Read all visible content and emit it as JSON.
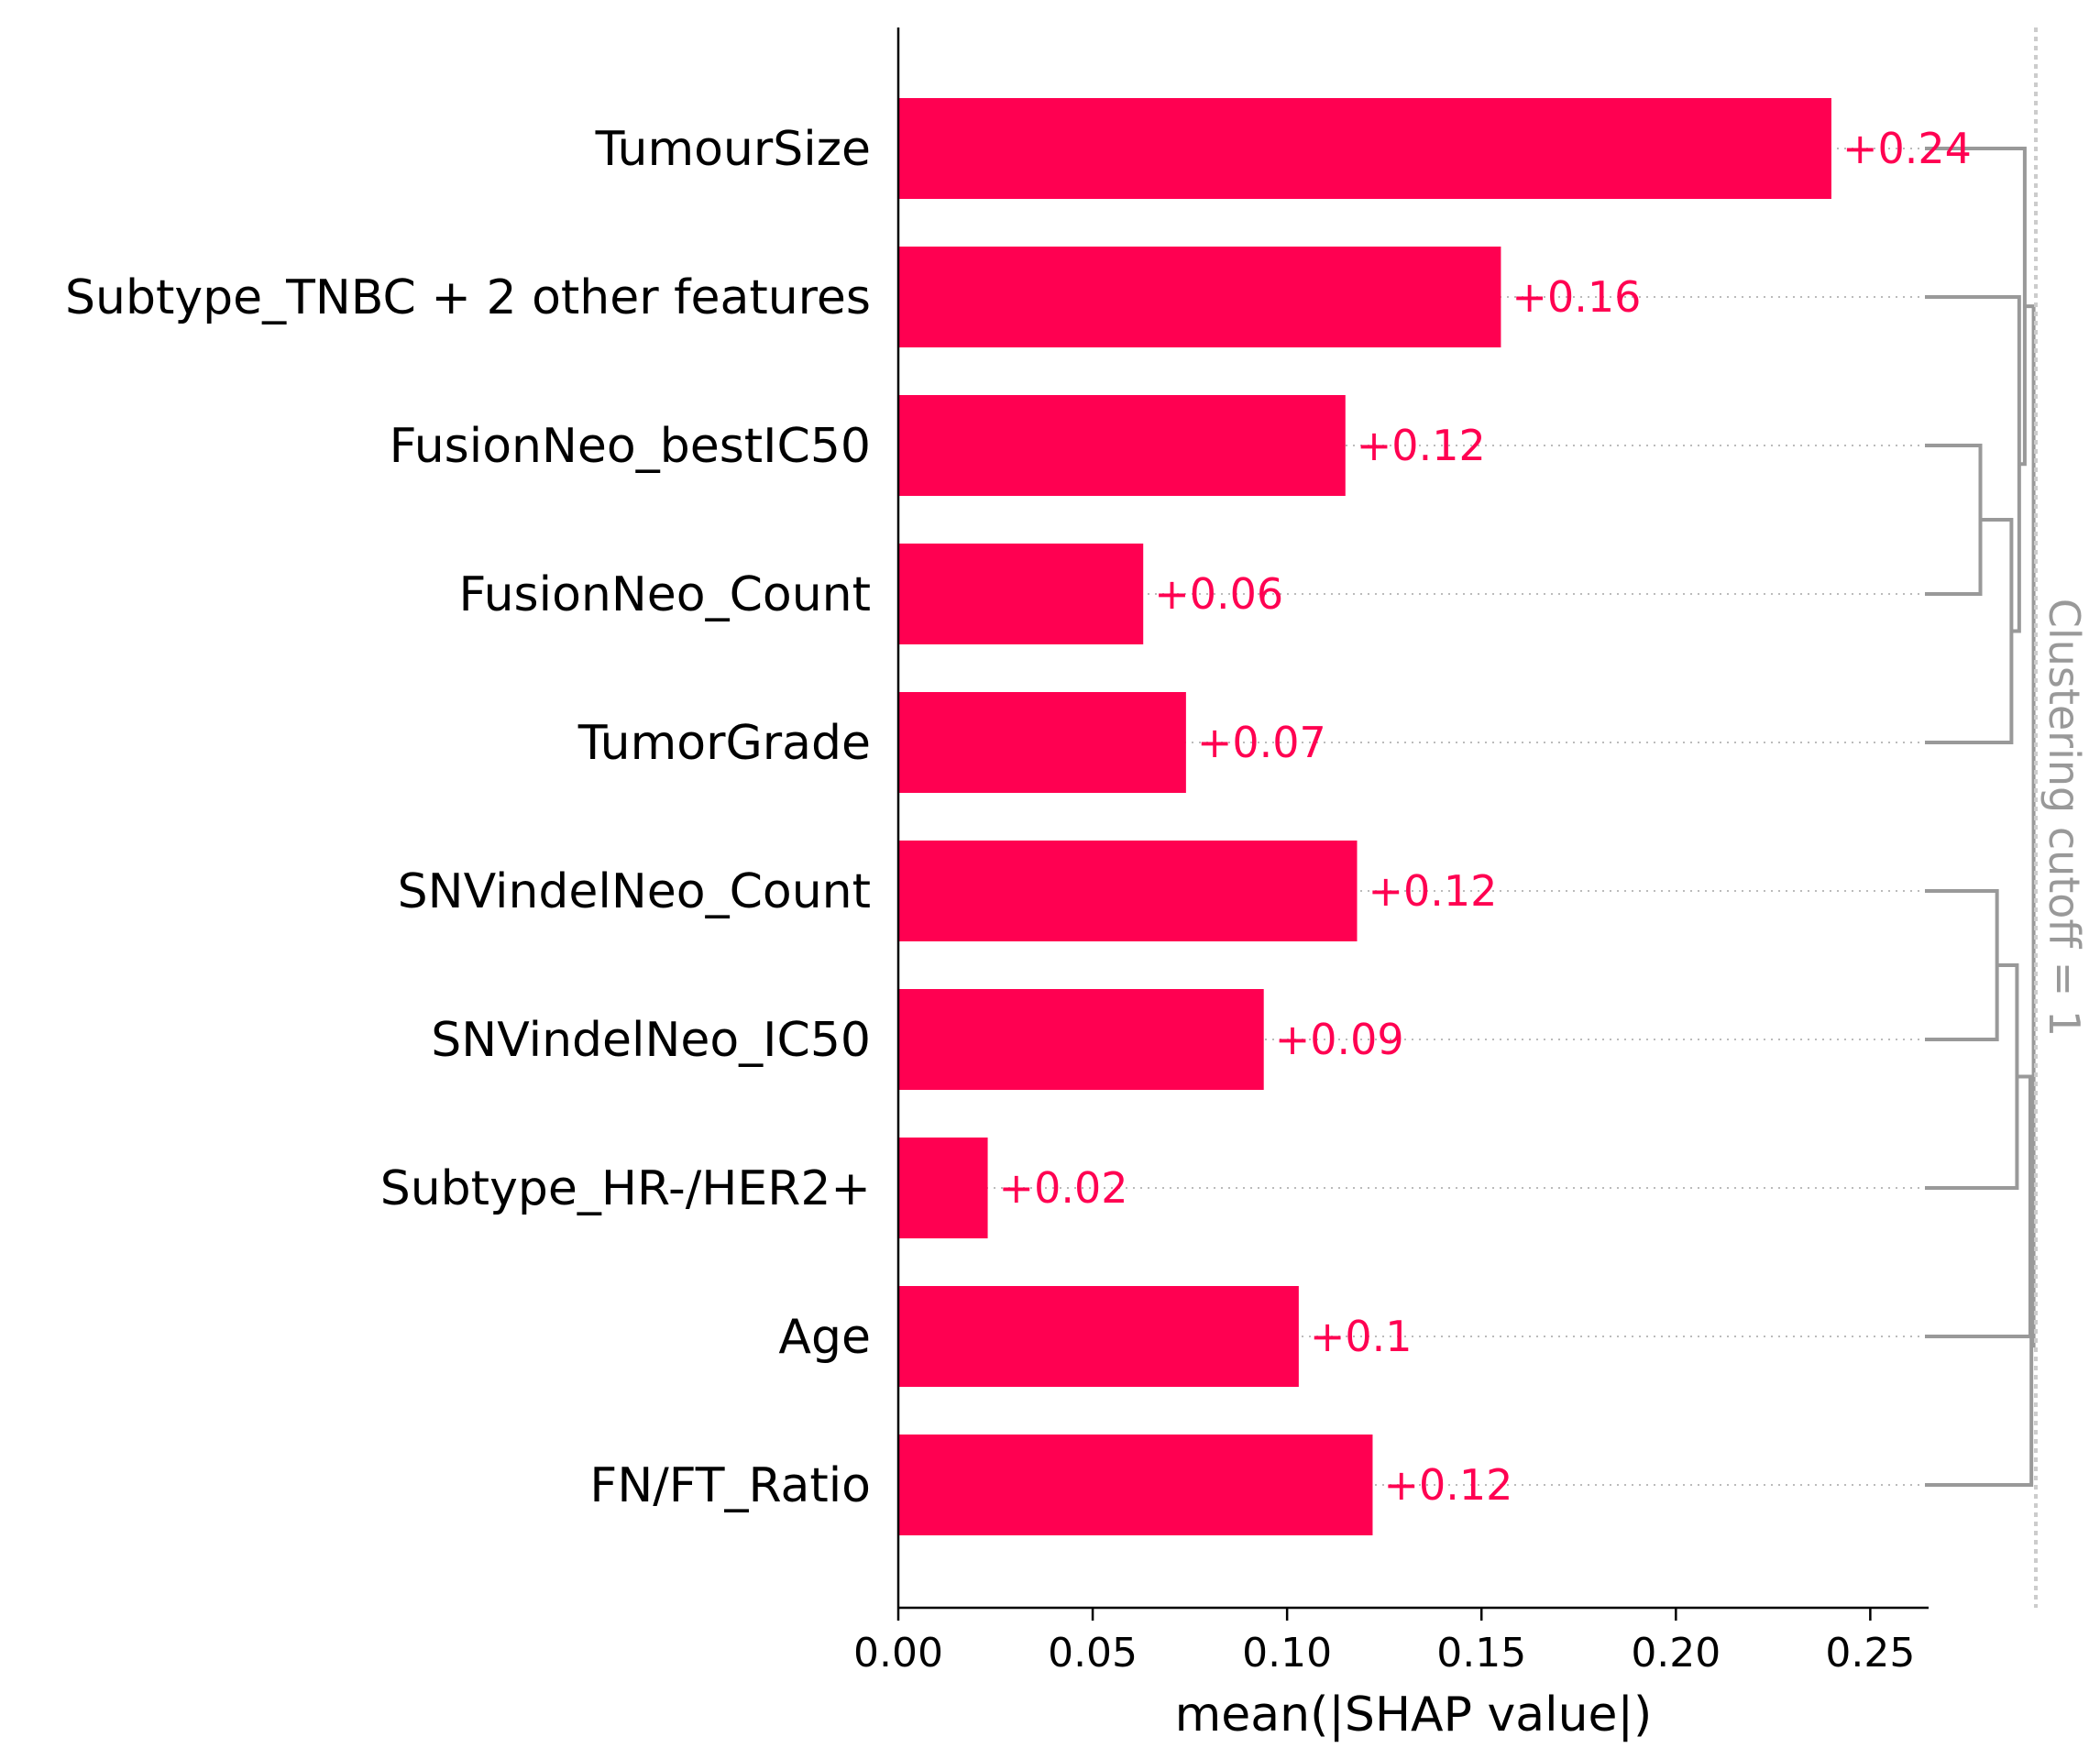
{
  "chart_data": {
    "type": "bar",
    "orientation": "horizontal",
    "categories": [
      "TumourSize",
      "Subtype_TNBC + 2 other features",
      "FusionNeo_bestIC50",
      "FusionNeo_Count",
      "TumorGrade",
      "SNVindelNeo_Count",
      "SNVindelNeo_IC50",
      "Subtype_HR-/HER2+",
      "Age",
      "FN/FT_Ratio"
    ],
    "values": [
      0.24,
      0.155,
      0.115,
      0.063,
      0.074,
      0.118,
      0.094,
      0.023,
      0.103,
      0.122
    ],
    "value_labels": [
      "+0.24",
      "+0.16",
      "+0.12",
      "+0.06",
      "+0.07",
      "+0.12",
      "+0.09",
      "+0.02",
      "+0.1",
      "+0.12"
    ],
    "xlabel": "mean(|SHAP value|)",
    "xlim": [
      0,
      0.265
    ],
    "xticks": [
      0.0,
      0.05,
      0.1,
      0.15,
      0.2,
      0.25
    ],
    "xtick_labels": [
      "0.00",
      "0.05",
      "0.10",
      "0.15",
      "0.20",
      "0.25"
    ],
    "bar_color": "#ff0051",
    "dendrogram_color": "#999999",
    "clustering_cutoff_label": "Clustering cutoff = 1",
    "dendrogram": [
      {
        "left": 2,
        "right": 3,
        "height": 0.5
      },
      {
        "left": 5,
        "right": 6,
        "height": 0.65
      },
      {
        "left": 10,
        "right": 4,
        "height": 0.78
      },
      {
        "left": 1,
        "right": 12,
        "height": 0.85
      },
      {
        "left": 11,
        "right": 7,
        "height": 0.83
      },
      {
        "left": 14,
        "right": 8,
        "height": 0.95
      },
      {
        "left": 0,
        "right": 13,
        "height": 0.9
      },
      {
        "left": 15,
        "right": 9,
        "height": 0.96
      },
      {
        "left": 16,
        "right": 17,
        "height": 0.98
      }
    ]
  }
}
